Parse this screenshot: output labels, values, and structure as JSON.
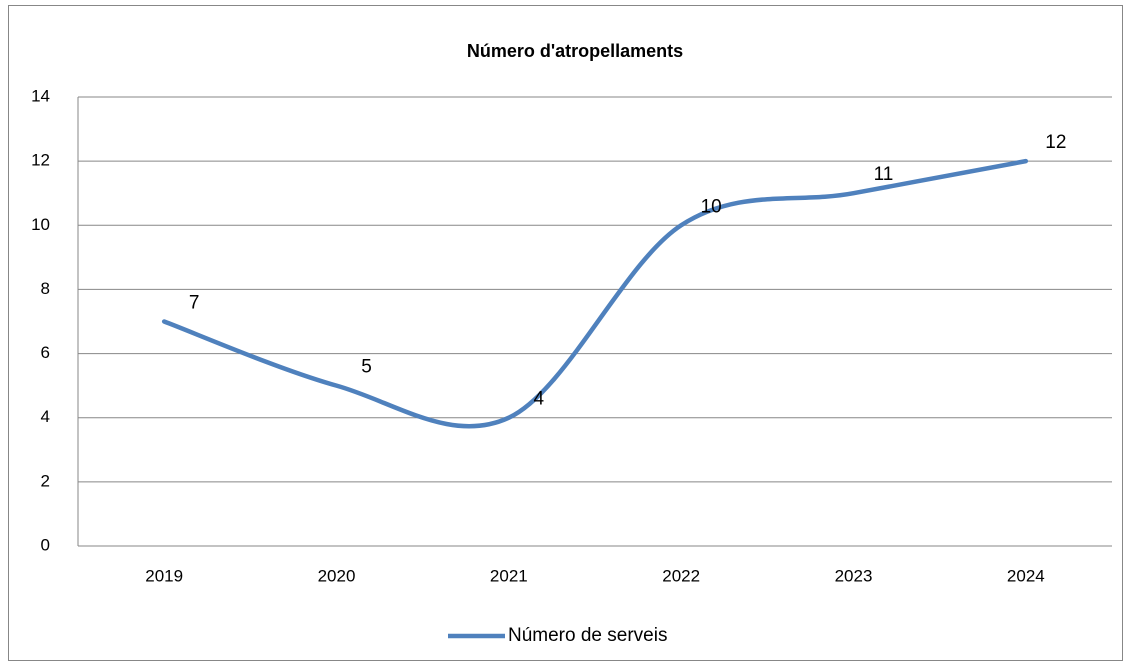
{
  "chart_data": {
    "type": "line",
    "title": "Número d'atropellaments",
    "categories": [
      "2019",
      "2020",
      "2021",
      "2022",
      "2023",
      "2024"
    ],
    "series": [
      {
        "name": "Número de serveis",
        "color": "#4f81bd",
        "values": [
          7,
          5,
          4,
          10,
          11,
          12
        ]
      }
    ],
    "ylim": [
      0,
      14
    ],
    "yticks": [
      0,
      2,
      4,
      6,
      8,
      10,
      12,
      14
    ],
    "grid": true,
    "smooth": true,
    "data_labels": true,
    "legend": "bottom"
  }
}
